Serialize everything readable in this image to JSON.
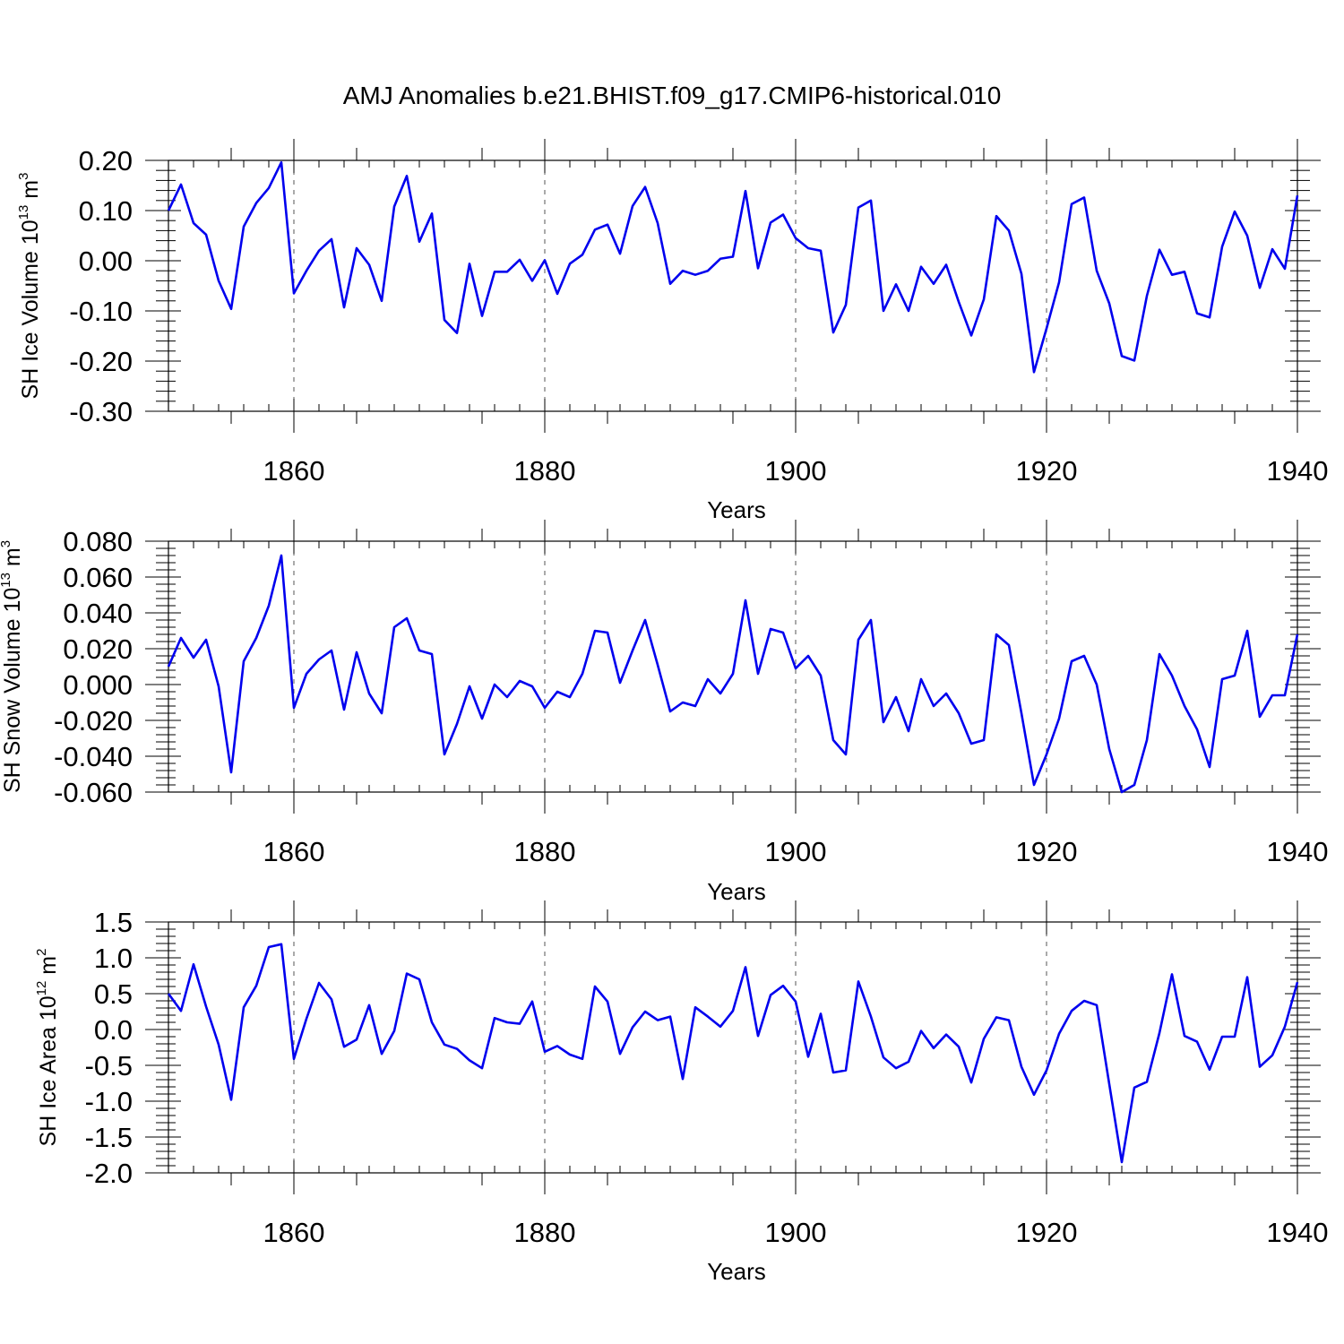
{
  "figure": {
    "title": "AMJ Anomalies b.e21.BHIST.f09_g17.CMIP6-historical.010",
    "line_color": "#0000ee"
  },
  "chart_data": [
    {
      "type": "line",
      "xlabel": "Years",
      "ylabel": {
        "prefix": "SH Ice Volume 10",
        "exponent": "13",
        "unit": " m",
        "unit_exponent": "3"
      },
      "xlim": [
        1850,
        1940
      ],
      "ylim": [
        -0.3,
        0.2
      ],
      "x_ticks": [
        "1860",
        "1880",
        "1900",
        "1920",
        "1940"
      ],
      "y_ticks": [
        "-0.30",
        "-0.20",
        "-0.10",
        "0.00",
        "0.10",
        "0.20"
      ],
      "x_start": 1850,
      "series": [
        {
          "values": [
            0.1,
            0.152,
            0.075,
            0.052,
            -0.04,
            -0.096,
            0.068,
            0.115,
            0.145,
            0.196,
            -0.065,
            -0.02,
            0.02,
            0.043,
            -0.093,
            0.025,
            -0.008,
            -0.08,
            0.108,
            0.169,
            0.038,
            0.094,
            -0.118,
            -0.144,
            -0.006,
            -0.11,
            -0.022,
            -0.022,
            0.002,
            -0.04,
            0.001,
            -0.066,
            -0.006,
            0.012,
            0.062,
            0.072,
            0.014,
            0.109,
            0.147,
            0.075,
            -0.046,
            -0.02,
            -0.028,
            -0.02,
            0.004,
            0.008,
            0.139,
            -0.015,
            0.076,
            0.092,
            0.045,
            0.025,
            0.02,
            -0.143,
            -0.088,
            0.106,
            0.12,
            -0.1,
            -0.047,
            -0.1,
            -0.012,
            -0.046,
            -0.008,
            -0.082,
            -0.149,
            -0.077,
            0.089,
            0.06,
            -0.026,
            -0.222,
            -0.135,
            -0.043,
            0.113,
            0.126,
            -0.02,
            -0.085,
            -0.19,
            -0.199,
            -0.07,
            0.022,
            -0.028,
            -0.022,
            -0.105,
            -0.113,
            0.028,
            0.098,
            0.05,
            -0.054,
            0.023,
            -0.016,
            0.13
          ]
        }
      ]
    },
    {
      "type": "line",
      "xlabel": "Years",
      "ylabel": {
        "prefix": "SH Snow Volume 10",
        "exponent": "13",
        "unit": " m",
        "unit_exponent": "3"
      },
      "xlim": [
        1850,
        1940
      ],
      "ylim": [
        -0.06,
        0.08
      ],
      "x_ticks": [
        "1860",
        "1880",
        "1900",
        "1920",
        "1940"
      ],
      "y_ticks": [
        "-0.060",
        "-0.040",
        "-0.020",
        "0.000",
        "0.020",
        "0.040",
        "0.060",
        "0.080"
      ],
      "x_start": 1850,
      "series": [
        {
          "values": [
            0.01,
            0.026,
            0.015,
            0.025,
            -0.001,
            -0.049,
            0.013,
            0.026,
            0.044,
            0.072,
            -0.013,
            0.006,
            0.014,
            0.019,
            -0.014,
            0.018,
            -0.005,
            -0.016,
            0.032,
            0.037,
            0.019,
            0.017,
            -0.039,
            -0.022,
            -0.001,
            -0.019,
            0.0,
            -0.007,
            0.002,
            -0.001,
            -0.013,
            -0.004,
            -0.007,
            0.006,
            0.03,
            0.029,
            0.001,
            0.019,
            0.036,
            0.011,
            -0.015,
            -0.01,
            -0.012,
            0.003,
            -0.005,
            0.006,
            0.047,
            0.006,
            0.031,
            0.029,
            0.009,
            0.016,
            0.005,
            -0.031,
            -0.039,
            0.025,
            0.036,
            -0.021,
            -0.007,
            -0.026,
            0.003,
            -0.012,
            -0.005,
            -0.016,
            -0.033,
            -0.031,
            0.028,
            0.022,
            -0.016,
            -0.056,
            -0.039,
            -0.019,
            0.013,
            0.016,
            0.0,
            -0.036,
            -0.06,
            -0.056,
            -0.031,
            0.017,
            0.005,
            -0.012,
            -0.025,
            -0.046,
            0.003,
            0.005,
            0.03,
            -0.018,
            -0.006,
            -0.006,
            0.028
          ]
        }
      ]
    },
    {
      "type": "line",
      "xlabel": "Years",
      "ylabel": {
        "prefix": "SH Ice Area 10",
        "exponent": "12",
        "unit": " m",
        "unit_exponent": "2"
      },
      "xlim": [
        1850,
        1940
      ],
      "ylim": [
        -2.0,
        1.5
      ],
      "x_ticks": [
        "1860",
        "1880",
        "1900",
        "1920",
        "1940"
      ],
      "y_ticks": [
        "-2.0",
        "-1.5",
        "-1.0",
        "-0.5",
        "0.0",
        "0.5",
        "1.0",
        "1.5"
      ],
      "x_start": 1850,
      "series": [
        {
          "values": [
            0.5,
            0.26,
            0.91,
            0.32,
            -0.21,
            -0.98,
            0.31,
            0.61,
            1.15,
            1.19,
            -0.41,
            0.15,
            0.65,
            0.42,
            -0.24,
            -0.14,
            0.34,
            -0.34,
            -0.02,
            0.78,
            0.7,
            0.1,
            -0.21,
            -0.27,
            -0.43,
            -0.54,
            0.16,
            0.1,
            0.08,
            0.39,
            -0.31,
            -0.23,
            -0.35,
            -0.41,
            0.6,
            0.39,
            -0.34,
            0.03,
            0.25,
            0.13,
            0.18,
            -0.69,
            0.31,
            0.18,
            0.04,
            0.26,
            0.87,
            -0.09,
            0.48,
            0.61,
            0.39,
            -0.38,
            0.22,
            -0.6,
            -0.57,
            0.67,
            0.18,
            -0.39,
            -0.54,
            -0.45,
            -0.02,
            -0.26,
            -0.07,
            -0.24,
            -0.74,
            -0.13,
            0.17,
            0.13,
            -0.52,
            -0.91,
            -0.57,
            -0.06,
            0.26,
            0.4,
            0.34,
            -0.76,
            -1.85,
            -0.81,
            -0.73,
            -0.05,
            0.77,
            -0.09,
            -0.17,
            -0.56,
            -0.1,
            -0.1,
            0.73,
            -0.52,
            -0.36,
            0.04,
            0.66
          ]
        }
      ]
    }
  ]
}
